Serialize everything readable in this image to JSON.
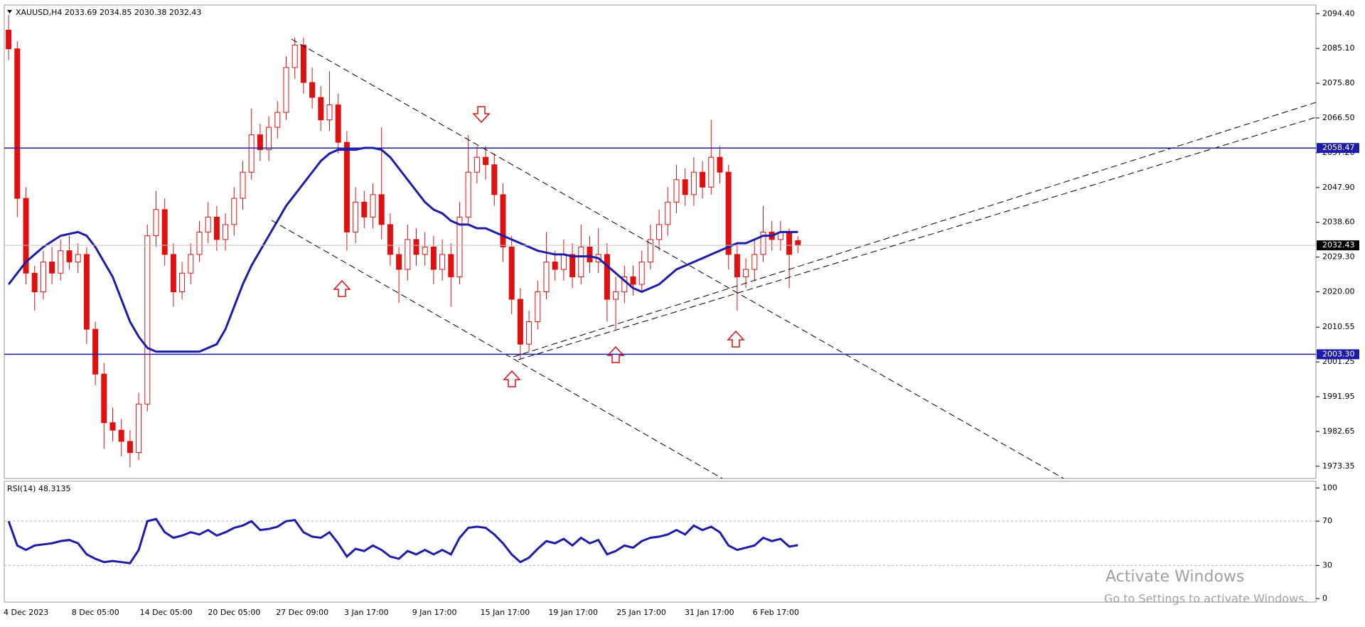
{
  "chart_data": [
    {
      "type": "candlestick",
      "title": "XAUUSD,H4",
      "open": [
        2090,
        2085,
        2045,
        2025,
        2020,
        2028,
        2025,
        2031,
        2028,
        2030,
        2010,
        1998,
        1985,
        1983,
        1980,
        1977,
        1990,
        2035,
        2042,
        2030,
        2020,
        2025,
        2030,
        2036,
        2040,
        2034,
        2038,
        2045,
        2052,
        2062,
        2058,
        2064,
        2068,
        2080,
        2086,
        2076,
        2072,
        2066,
        2070,
        2060,
        2036,
        2044,
        2040,
        2046,
        2038,
        2030,
        2026,
        2034,
        2030,
        2032,
        2026,
        2030,
        2024,
        2040,
        2052,
        2056,
        2054,
        2046,
        2032,
        2018,
        2006,
        2012,
        2020,
        2028,
        2026,
        2030,
        2024,
        2032,
        2028,
        2030,
        2018,
        2020,
        2024,
        2022,
        2028,
        2034,
        2038,
        2044,
        2050,
        2046,
        2052,
        2048,
        2056,
        2052,
        2030,
        2024,
        2026,
        2030,
        2036,
        2034,
        2036,
        2033.69
      ],
      "high": [
        2094,
        2087,
        2048,
        2027,
        2031,
        2032,
        2034,
        2035,
        2033,
        2032,
        2012,
        2001,
        1989,
        1986,
        1983,
        1993,
        2038,
        2047,
        2045,
        2033,
        2028,
        2033,
        2039,
        2044,
        2043,
        2041,
        2048,
        2055,
        2069,
        2065,
        2067,
        2071,
        2083,
        2088,
        2088,
        2080,
        2075,
        2079,
        2073,
        2063,
        2048,
        2047,
        2049,
        2064,
        2041,
        2032,
        2038,
        2037,
        2036,
        2035,
        2034,
        2033,
        2044,
        2062,
        2059,
        2059,
        2057,
        2049,
        2035,
        2021,
        2015,
        2023,
        2036,
        2031,
        2034,
        2033,
        2038,
        2035,
        2037,
        2033,
        2024,
        2027,
        2027,
        2031,
        2038,
        2042,
        2048,
        2054,
        2053,
        2056,
        2055,
        2066,
        2059,
        2054,
        2033,
        2029,
        2034,
        2043,
        2039,
        2039,
        2037,
        2034.85
      ],
      "low": [
        2082,
        2040,
        2022,
        2015,
        2018,
        2022,
        2023,
        2026,
        2025,
        2006,
        1995,
        1978,
        1980,
        1976,
        1973,
        1975,
        1988,
        2032,
        2027,
        2016,
        2018,
        2022,
        2028,
        2033,
        2031,
        2031,
        2035,
        2042,
        2050,
        2055,
        2055,
        2061,
        2066,
        2077,
        2073,
        2069,
        2063,
        2063,
        2057,
        2031,
        2033,
        2037,
        2037,
        2034,
        2027,
        2017,
        2023,
        2027,
        2027,
        2022,
        2023,
        2016,
        2022,
        2038,
        2049,
        2050,
        2043,
        2028,
        2014,
        2002,
        2004,
        2010,
        2018,
        2023,
        2023,
        2021,
        2022,
        2025,
        2025,
        2012,
        2010,
        2017,
        2019,
        2020,
        2026,
        2031,
        2035,
        2041,
        2043,
        2043,
        2045,
        2046,
        2049,
        2026,
        2015,
        2021,
        2023,
        2028,
        2031,
        2031,
        2021,
        2030.38
      ],
      "close": [
        2085,
        2045,
        2025,
        2020,
        2028,
        2025,
        2031,
        2028,
        2030,
        2010,
        1998,
        1985,
        1983,
        1980,
        1977,
        1990,
        2035,
        2042,
        2030,
        2020,
        2025,
        2030,
        2036,
        2040,
        2034,
        2038,
        2045,
        2052,
        2062,
        2058,
        2064,
        2068,
        2080,
        2086,
        2076,
        2072,
        2066,
        2070,
        2060,
        2036,
        2044,
        2040,
        2046,
        2038,
        2030,
        2026,
        2034,
        2030,
        2032,
        2026,
        2030,
        2024,
        2040,
        2052,
        2056,
        2054,
        2046,
        2032,
        2018,
        2006,
        2012,
        2020,
        2028,
        2026,
        2030,
        2024,
        2032,
        2028,
        2030,
        2018,
        2020,
        2024,
        2022,
        2028,
        2034,
        2038,
        2044,
        2050,
        2046,
        2052,
        2048,
        2056,
        2052,
        2030,
        2024,
        2026,
        2030,
        2036,
        2034,
        2036,
        2030,
        2032.43
      ],
      "candle_color": "#e01010",
      "series": [
        {
          "color": "#1c1ca8",
          "values": [
            2022,
            2025,
            2028,
            2030,
            2032,
            2033.5,
            2035,
            2035.5,
            2036,
            2035,
            2032,
            2028,
            2024,
            2018,
            2012,
            2008,
            2005,
            2004,
            2004,
            2004,
            2004,
            2004,
            2004,
            2005,
            2006,
            2010,
            2016,
            2022,
            2027,
            2031,
            2035,
            2039,
            2043,
            2046,
            2049,
            2052,
            2055,
            2057,
            2058,
            2058,
            2058,
            2058.5,
            2058.5,
            2058,
            2056,
            2053,
            2050,
            2047,
            2044,
            2042,
            2041,
            2039,
            2038,
            2038,
            2037,
            2037,
            2036,
            2035,
            2034,
            2033,
            2032,
            2031,
            2030.5,
            2030,
            2030,
            2029.5,
            2029.5,
            2029.5,
            2029,
            2027,
            2025,
            2023,
            2021,
            2020,
            2021,
            2022,
            2024,
            2026,
            2027,
            2028,
            2029,
            2030,
            2031,
            2032,
            2033,
            2033,
            2034,
            2035,
            2035,
            2036,
            2036,
            2036
          ]
        }
      ],
      "levels": [
        {
          "value": 2058.47,
          "label": "2058.47",
          "color": "#1c1ca8"
        },
        {
          "value": 2003.3,
          "label": "2003.30",
          "color": "#1c1ca8"
        }
      ],
      "ylim": [
        1970.09,
        2096.73
      ],
      "yticks": [
        {
          "value": 2094.4,
          "label": "2094.40"
        },
        {
          "value": 2085.1,
          "label": "2085.10"
        },
        {
          "value": 2075.8,
          "label": "2075.80"
        },
        {
          "value": 2066.5,
          "label": "2066.50"
        },
        {
          "value": 2057.2,
          "label": "2057.20"
        },
        {
          "value": 2047.9,
          "label": "2047.90"
        },
        {
          "value": 2038.6,
          "label": "2038.60"
        },
        {
          "value": 2029.3,
          "label": "2029.30"
        },
        {
          "value": 2020,
          "label": "2020.00"
        },
        {
          "value": 2010.55,
          "label": "2010.55"
        },
        {
          "value": 2001.25,
          "label": "2001.25"
        },
        {
          "value": 1991.95,
          "label": "1991.95"
        },
        {
          "value": 1982.65,
          "label": "1982.65"
        },
        {
          "value": 1973.35,
          "label": "1973.35"
        }
      ],
      "time_labels": [
        "4 Dec 2023",
        "8 Dec 05:00",
        "14 Dec 05:00",
        "20 Dec 05:00",
        "27 Dec 09:00",
        "3 Jan 17:00",
        "9 Jan 17:00",
        "15 Jan 17:00",
        "19 Jan 17:00",
        "25 Jan 17:00",
        "31 Jan 17:00",
        "6 Feb 17:00"
      ]
    },
    {
      "type": "line",
      "title": "RSI(14)",
      "series": [
        {
          "color": "#1c1ca8",
          "values": [
            70,
            48,
            44,
            48,
            49,
            50,
            52,
            53,
            50,
            40,
            36,
            33,
            34,
            33,
            32,
            44,
            70,
            72,
            60,
            55,
            57,
            60,
            58,
            62,
            57,
            60,
            64,
            66,
            70,
            62,
            63,
            65,
            70,
            71,
            60,
            56,
            55,
            60,
            50,
            38,
            45,
            43,
            48,
            44,
            38,
            36,
            43,
            40,
            44,
            40,
            44,
            40,
            55,
            64,
            65,
            64,
            58,
            50,
            40,
            33,
            37,
            45,
            52,
            50,
            54,
            48,
            55,
            50,
            53,
            40,
            43,
            48,
            46,
            52,
            55,
            56,
            58,
            62,
            58,
            66,
            62,
            65,
            60,
            48,
            44,
            46,
            48,
            55,
            52,
            54,
            47,
            48.3135
          ]
        }
      ],
      "ylim": [
        -3.2,
        106.1
      ],
      "yticks": [
        100,
        70,
        30,
        0
      ],
      "inner_ticks_dashed": true
    }
  ],
  "watermark": {
    "line1": "Activate Windows",
    "line2": "Go to Settings to activate Windows."
  }
}
